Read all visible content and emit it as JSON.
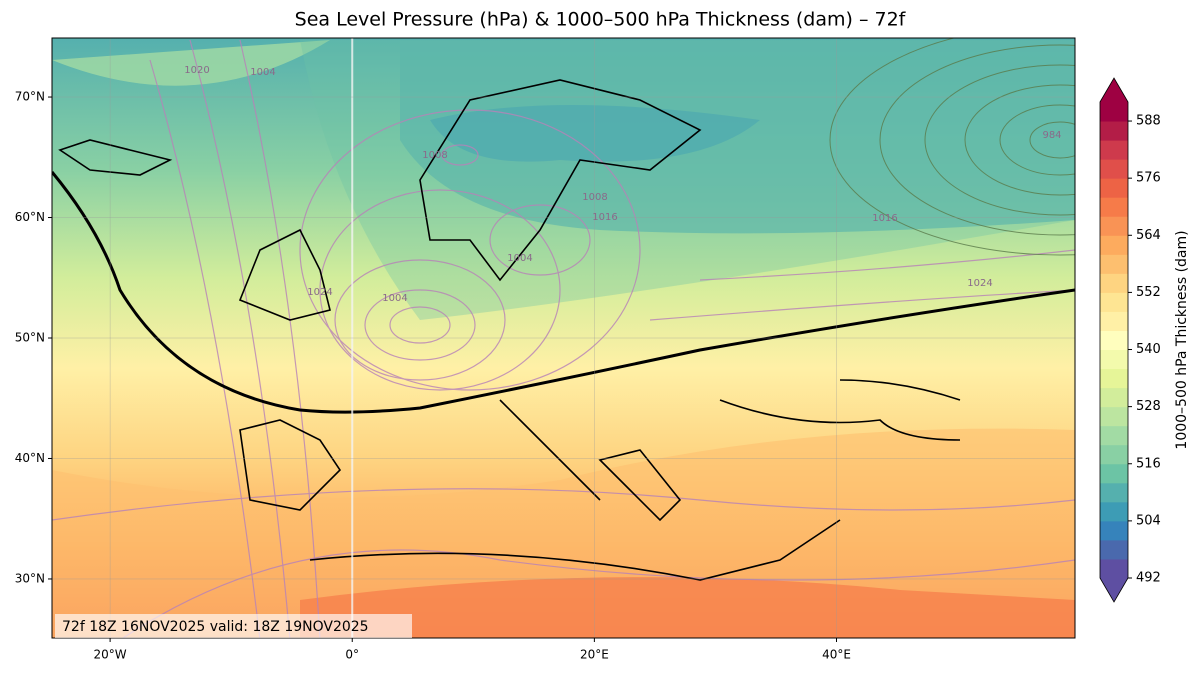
{
  "title": "Sea Level Pressure (hPa) & 1000–500 hPa Thickness (dam) – 72f",
  "map": {
    "lon_range": [
      -24.8,
      59.7
    ],
    "lat_range": [
      25.1,
      74.9
    ],
    "lon_ticks": [
      {
        "value": -20,
        "label": "20°W"
      },
      {
        "value": 0,
        "label": "0°"
      },
      {
        "value": 20,
        "label": "20°E"
      },
      {
        "value": 40,
        "label": "40°E"
      }
    ],
    "lat_ticks": [
      {
        "value": 30,
        "label": "30°N"
      },
      {
        "value": 40,
        "label": "40°N"
      },
      {
        "value": 50,
        "label": "50°N"
      },
      {
        "value": 60,
        "label": "60°N"
      },
      {
        "value": 70,
        "label": "70°N"
      }
    ],
    "contour_labels": [
      1020,
      1004,
      1008,
      1008,
      1004,
      1004,
      1016,
      1024,
      984,
      1016,
      1024
    ],
    "annotation": "72f 18Z 16NOV2025 valid: 18Z 19NOV2025"
  },
  "colorbar": {
    "label": "1000–500 hPa Thickness (dam)",
    "range": [
      492,
      592
    ],
    "ticks": [
      492,
      504,
      516,
      528,
      540,
      552,
      564,
      576,
      588
    ],
    "colors": [
      "#5e4fa2",
      "#4a69ad",
      "#3683bb",
      "#3d9cb5",
      "#55b0ae",
      "#6cc4a5",
      "#89d0a4",
      "#a2dba4",
      "#bce5a0",
      "#d2ed9b",
      "#e6f598",
      "#f3faac",
      "#fffebe",
      "#fff0a6",
      "#fee593",
      "#fed481",
      "#fdbf6f",
      "#fdab5e",
      "#f99355",
      "#f67b49",
      "#ed6345",
      "#e04f4a",
      "#ce3a4c",
      "#b31d47",
      "#9e0142"
    ]
  }
}
